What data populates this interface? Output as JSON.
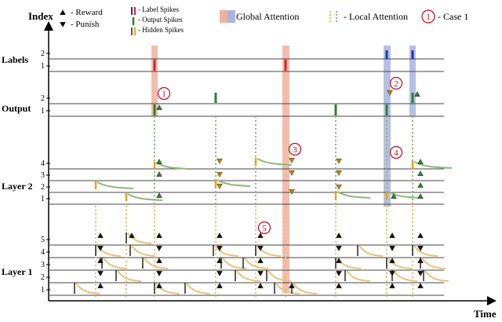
{
  "axes": {
    "y_title": "Index",
    "x_title": "Time"
  },
  "legend": {
    "reward": "- Reward",
    "punish": "- Punish",
    "label_spikes": "- Label Spikes",
    "output_spikes": "- Output Spikes",
    "hidden_spikes": "- Hidden Spikes",
    "global_attention": "- Global Attention",
    "local_attention": "- Local Attention",
    "case_label": "- Case 1",
    "case_badge": "1"
  },
  "layers": {
    "labels": "Labels",
    "output": "Output",
    "layer2": "Layer 2",
    "layer1": "Layer 1"
  },
  "index_labels": {
    "labels": [
      "2",
      "1"
    ],
    "output": [
      "2",
      "1"
    ],
    "layer2": [
      "4",
      "3",
      "2",
      "1"
    ],
    "layer1": [
      "5",
      "4",
      "3",
      "2",
      "1"
    ]
  },
  "case_markers": [
    "1",
    "2",
    "3",
    "4",
    "5"
  ],
  "colors": {
    "label_spike": "#2233aa",
    "label_spike_global": "#dd2222",
    "output_spike": "#2e7d32",
    "hidden_spike": "#e8a317",
    "layer2_trace": "#8fb87a",
    "layer1_trace": "#e8c27a",
    "local_attention": "#e8c170",
    "global_attention": "#f0b29e",
    "case_circle": "#d0021b",
    "reward_icon": "#2e7d32",
    "punish_icon": "#b8860b"
  }
}
